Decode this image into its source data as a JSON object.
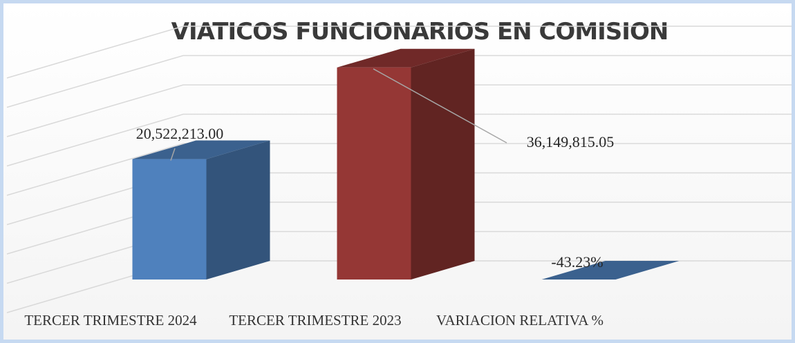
{
  "chart_data": {
    "type": "bar3d",
    "title": "VIATICOS FUNCIONARIOS EN COMISION",
    "categories": [
      "TERCER TRIMESTRE 2024",
      "TERCER TRIMESTRE 2023",
      "VARIACION RELATIVA %"
    ],
    "values": [
      20522213,
      36149815.05,
      -43.23
    ],
    "value_labels": [
      "20,522,213.00",
      "36,149,815.05",
      "-43.23%"
    ],
    "colors": [
      "#4f81bd",
      "#953735",
      "#4f81bd"
    ],
    "ylim": [
      0,
      40000000
    ],
    "yticks": [
      0,
      5000000,
      10000000,
      15000000,
      20000000,
      25000000,
      30000000,
      35000000,
      40000000
    ],
    "grid": true
  }
}
